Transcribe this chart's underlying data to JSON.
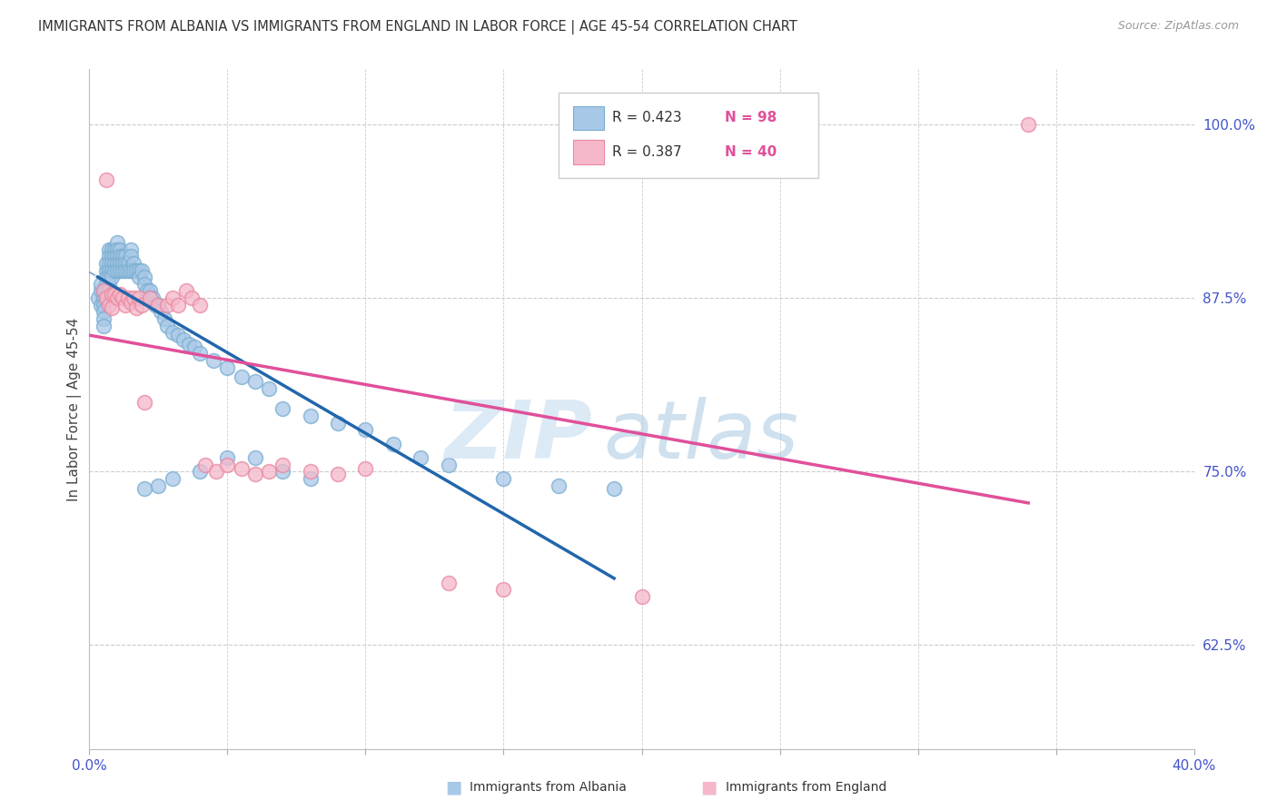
{
  "title": "IMMIGRANTS FROM ALBANIA VS IMMIGRANTS FROM ENGLAND IN LABOR FORCE | AGE 45-54 CORRELATION CHART",
  "source": "Source: ZipAtlas.com",
  "ylabel": "In Labor Force | Age 45-54",
  "xlim": [
    0.0,
    0.4
  ],
  "ylim": [
    0.55,
    1.04
  ],
  "xtick_positions": [
    0.0,
    0.05,
    0.1,
    0.15,
    0.2,
    0.25,
    0.3,
    0.35,
    0.4
  ],
  "ytick_right_positions": [
    0.625,
    0.75,
    0.875,
    1.0
  ],
  "ytick_right_labels": [
    "62.5%",
    "75.0%",
    "87.5%",
    "100.0%"
  ],
  "blue_face": "#a8c8e8",
  "blue_edge": "#7aaed0",
  "pink_face": "#f5b8ca",
  "pink_edge": "#e888a0",
  "trend_blue": "#2166ac",
  "trend_pink": "#e0509a",
  "grid_color": "#cccccc",
  "axis_tick_color": "#4455cc",
  "legend_R_color": "#333333",
  "legend_N_color": "#e0509a",
  "watermark_zip_color": "#c5dcf0",
  "watermark_atlas_color": "#a8c8e0",
  "albania_x": [
    0.003,
    0.004,
    0.004,
    0.004,
    0.005,
    0.005,
    0.005,
    0.005,
    0.005,
    0.005,
    0.006,
    0.006,
    0.006,
    0.006,
    0.006,
    0.006,
    0.007,
    0.007,
    0.007,
    0.007,
    0.007,
    0.007,
    0.007,
    0.008,
    0.008,
    0.008,
    0.008,
    0.008,
    0.009,
    0.009,
    0.009,
    0.009,
    0.01,
    0.01,
    0.01,
    0.01,
    0.01,
    0.011,
    0.011,
    0.011,
    0.011,
    0.012,
    0.012,
    0.012,
    0.013,
    0.013,
    0.013,
    0.014,
    0.014,
    0.015,
    0.015,
    0.015,
    0.016,
    0.016,
    0.017,
    0.018,
    0.018,
    0.019,
    0.02,
    0.02,
    0.021,
    0.022,
    0.022,
    0.023,
    0.024,
    0.025,
    0.026,
    0.027,
    0.028,
    0.03,
    0.032,
    0.034,
    0.036,
    0.038,
    0.04,
    0.045,
    0.05,
    0.055,
    0.06,
    0.065,
    0.07,
    0.08,
    0.09,
    0.1,
    0.11,
    0.12,
    0.13,
    0.15,
    0.17,
    0.19,
    0.06,
    0.07,
    0.08,
    0.05,
    0.04,
    0.03,
    0.025,
    0.02
  ],
  "albania_y": [
    0.875,
    0.88,
    0.87,
    0.885,
    0.875,
    0.87,
    0.865,
    0.86,
    0.855,
    0.88,
    0.895,
    0.89,
    0.885,
    0.88,
    0.875,
    0.9,
    0.91,
    0.905,
    0.9,
    0.895,
    0.89,
    0.885,
    0.88,
    0.91,
    0.905,
    0.9,
    0.895,
    0.89,
    0.91,
    0.905,
    0.9,
    0.895,
    0.915,
    0.91,
    0.905,
    0.9,
    0.895,
    0.91,
    0.905,
    0.9,
    0.895,
    0.905,
    0.9,
    0.895,
    0.905,
    0.9,
    0.895,
    0.9,
    0.895,
    0.91,
    0.905,
    0.895,
    0.9,
    0.895,
    0.895,
    0.895,
    0.89,
    0.895,
    0.89,
    0.885,
    0.88,
    0.88,
    0.875,
    0.875,
    0.87,
    0.87,
    0.865,
    0.86,
    0.855,
    0.85,
    0.848,
    0.845,
    0.842,
    0.84,
    0.835,
    0.83,
    0.825,
    0.818,
    0.815,
    0.81,
    0.795,
    0.79,
    0.785,
    0.78,
    0.77,
    0.76,
    0.755,
    0.745,
    0.74,
    0.738,
    0.76,
    0.75,
    0.745,
    0.76,
    0.75,
    0.745,
    0.74,
    0.738
  ],
  "england_x": [
    0.005,
    0.006,
    0.006,
    0.007,
    0.008,
    0.008,
    0.009,
    0.01,
    0.011,
    0.012,
    0.013,
    0.014,
    0.015,
    0.016,
    0.017,
    0.018,
    0.019,
    0.02,
    0.022,
    0.025,
    0.028,
    0.03,
    0.032,
    0.035,
    0.037,
    0.04,
    0.042,
    0.046,
    0.05,
    0.055,
    0.06,
    0.065,
    0.07,
    0.08,
    0.09,
    0.1,
    0.13,
    0.15,
    0.34,
    0.2
  ],
  "england_y": [
    0.88,
    0.96,
    0.875,
    0.87,
    0.878,
    0.868,
    0.878,
    0.875,
    0.878,
    0.875,
    0.87,
    0.875,
    0.872,
    0.875,
    0.868,
    0.875,
    0.87,
    0.8,
    0.875,
    0.87,
    0.87,
    0.875,
    0.87,
    0.88,
    0.875,
    0.87,
    0.755,
    0.75,
    0.755,
    0.752,
    0.748,
    0.75,
    0.755,
    0.75,
    0.748,
    0.752,
    0.67,
    0.665,
    1.0,
    0.66
  ]
}
